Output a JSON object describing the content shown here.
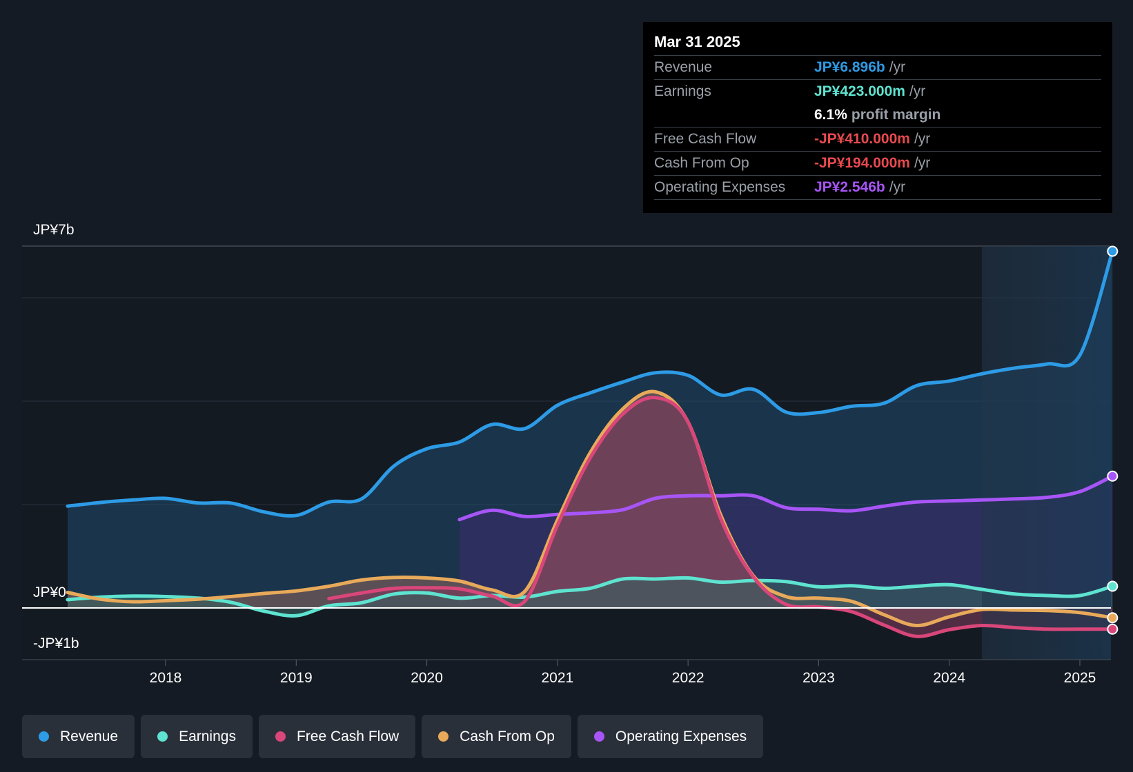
{
  "tooltip": {
    "date": "Mar 31 2025",
    "rows": [
      {
        "label": "Revenue",
        "value": "JP¥6.896b",
        "unit": "/yr",
        "color": "#2d9be5"
      },
      {
        "label": "Earnings",
        "value": "JP¥423.000m",
        "unit": "/yr",
        "color": "#5ee3d0"
      },
      {
        "label": "Free Cash Flow",
        "value": "-JP¥410.000m",
        "unit": "/yr",
        "color": "#e84a4f"
      },
      {
        "label": "Cash From Op",
        "value": "-JP¥194.000m",
        "unit": "/yr",
        "color": "#e84a4f"
      },
      {
        "label": "Operating Expenses",
        "value": "JP¥2.546b",
        "unit": "/yr",
        "color": "#a855f7"
      }
    ],
    "profit_margin_value": "6.1%",
    "profit_margin_text": "profit margin"
  },
  "legend": [
    {
      "label": "Revenue",
      "color": "#2d9be5"
    },
    {
      "label": "Earnings",
      "color": "#5ee3d0"
    },
    {
      "label": "Free Cash Flow",
      "color": "#d9467a"
    },
    {
      "label": "Cash From Op",
      "color": "#e8aa5a"
    },
    {
      "label": "Operating Expenses",
      "color": "#a855f7"
    }
  ],
  "chart_data": {
    "type": "area",
    "y_axis_labels": [
      "JP¥7b",
      "JP¥0",
      "-JP¥1b"
    ],
    "ylim": [
      -1,
      7
    ],
    "xlim": [
      2017.0,
      2025.25
    ],
    "x_ticks": [
      {
        "value": 2018,
        "label": "2018"
      },
      {
        "value": 2019,
        "label": "2019"
      },
      {
        "value": 2020,
        "label": "2020"
      },
      {
        "value": 2021,
        "label": "2021"
      },
      {
        "value": 2022,
        "label": "2022"
      },
      {
        "value": 2023,
        "label": "2023"
      },
      {
        "value": 2024,
        "label": "2024"
      },
      {
        "value": 2025,
        "label": "2025"
      }
    ],
    "highlight_start": 2024.25,
    "series": [
      {
        "name": "Revenue",
        "color": "#2d9be5",
        "fill": "#1f4a6e",
        "x": [
          2017.25,
          2017.5,
          2017.75,
          2018.0,
          2018.25,
          2018.5,
          2018.75,
          2019.0,
          2019.25,
          2019.5,
          2019.75,
          2020.0,
          2020.25,
          2020.5,
          2020.75,
          2021.0,
          2021.25,
          2021.5,
          2021.75,
          2022.0,
          2022.25,
          2022.5,
          2022.75,
          2023.0,
          2023.25,
          2023.5,
          2023.75,
          2024.0,
          2024.25,
          2024.5,
          2024.75,
          2025.0,
          2025.25
        ],
        "y": [
          1.97,
          2.04,
          2.09,
          2.12,
          2.03,
          2.03,
          1.86,
          1.79,
          2.05,
          2.11,
          2.75,
          3.08,
          3.21,
          3.55,
          3.47,
          3.92,
          4.16,
          4.37,
          4.55,
          4.5,
          4.12,
          4.23,
          3.79,
          3.78,
          3.9,
          3.96,
          4.3,
          4.39,
          4.53,
          4.64,
          4.72,
          4.89,
          6.9
        ]
      },
      {
        "name": "Earnings",
        "color": "#5ee3d0",
        "fill": "#35605f",
        "x": [
          2017.25,
          2017.5,
          2017.75,
          2018.0,
          2018.25,
          2018.5,
          2018.75,
          2019.0,
          2019.25,
          2019.5,
          2019.75,
          2020.0,
          2020.25,
          2020.5,
          2020.75,
          2021.0,
          2021.25,
          2021.5,
          2021.75,
          2022.0,
          2022.25,
          2022.5,
          2022.75,
          2023.0,
          2023.25,
          2023.5,
          2023.75,
          2024.0,
          2024.25,
          2024.5,
          2024.75,
          2025.0,
          2025.25
        ],
        "y": [
          0.16,
          0.21,
          0.23,
          0.22,
          0.19,
          0.11,
          -0.06,
          -0.15,
          0.04,
          0.1,
          0.27,
          0.29,
          0.19,
          0.24,
          0.21,
          0.32,
          0.38,
          0.56,
          0.56,
          0.58,
          0.5,
          0.53,
          0.51,
          0.41,
          0.43,
          0.38,
          0.42,
          0.45,
          0.36,
          0.27,
          0.24,
          0.24,
          0.42
        ]
      },
      {
        "name": "Free Cash Flow",
        "color": "#d9467a",
        "fill": "#7a3b5c",
        "x": [
          2019.25,
          2019.5,
          2019.75,
          2020.0,
          2020.25,
          2020.5,
          2020.75,
          2021.0,
          2021.25,
          2021.5,
          2021.75,
          2022.0,
          2022.25,
          2022.5,
          2022.75,
          2023.0,
          2023.25,
          2023.5,
          2023.75,
          2024.0,
          2024.25,
          2024.5,
          2024.75,
          2025.0,
          2025.25
        ],
        "y": [
          0.18,
          0.29,
          0.38,
          0.39,
          0.37,
          0.23,
          0.13,
          1.6,
          2.9,
          3.75,
          4.07,
          3.6,
          1.73,
          0.6,
          0.07,
          0.02,
          -0.07,
          -0.33,
          -0.55,
          -0.42,
          -0.34,
          -0.38,
          -0.41,
          -0.41,
          -0.41
        ]
      },
      {
        "name": "Cash From Op",
        "color": "#e8aa5a",
        "fill": "#86625a",
        "x": [
          2017.25,
          2017.5,
          2017.75,
          2018.0,
          2018.25,
          2018.5,
          2018.75,
          2019.0,
          2019.25,
          2019.5,
          2019.75,
          2020.0,
          2020.25,
          2020.5,
          2020.75,
          2021.0,
          2021.25,
          2021.5,
          2021.75,
          2022.0,
          2022.25,
          2022.5,
          2022.75,
          2023.0,
          2023.25,
          2023.5,
          2023.75,
          2024.0,
          2024.25,
          2024.5,
          2024.75,
          2025.0,
          2025.25
        ],
        "y": [
          0.3,
          0.17,
          0.12,
          0.14,
          0.17,
          0.22,
          0.28,
          0.33,
          0.42,
          0.54,
          0.59,
          0.58,
          0.52,
          0.35,
          0.32,
          1.7,
          3.0,
          3.85,
          4.18,
          3.6,
          1.8,
          0.62,
          0.22,
          0.19,
          0.13,
          -0.13,
          -0.34,
          -0.17,
          -0.03,
          -0.04,
          -0.05,
          -0.09,
          -0.19
        ]
      },
      {
        "name": "Operating Expenses",
        "color": "#a855f7",
        "fill": "#3b2e6b",
        "x": [
          2020.25,
          2020.5,
          2020.75,
          2021.0,
          2021.25,
          2021.5,
          2021.75,
          2022.0,
          2022.25,
          2022.5,
          2022.75,
          2023.0,
          2023.25,
          2023.5,
          2023.75,
          2024.0,
          2024.25,
          2024.5,
          2024.75,
          2025.0,
          2025.25
        ],
        "y": [
          1.71,
          1.89,
          1.77,
          1.81,
          1.84,
          1.9,
          2.12,
          2.17,
          2.17,
          2.17,
          1.94,
          1.91,
          1.88,
          1.97,
          2.05,
          2.07,
          2.09,
          2.11,
          2.14,
          2.25,
          2.55
        ]
      }
    ]
  }
}
